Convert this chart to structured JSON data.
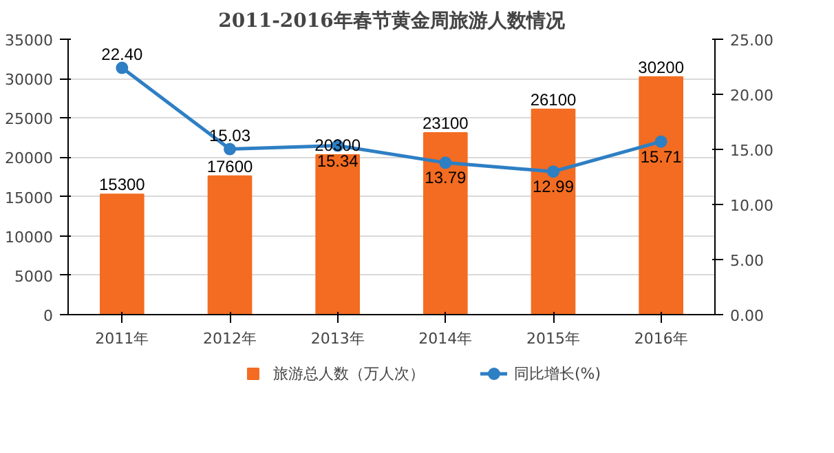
{
  "chart_data": {
    "type": "bar",
    "title": "2011-2016年春节黄金周旅游人数情况",
    "categories": [
      "2011年",
      "2012年",
      "2013年",
      "2014年",
      "2015年",
      "2016年"
    ],
    "series": [
      {
        "name": "旅游总人数（万人次）",
        "color": "#f36c21",
        "values": [
          15300,
          17600,
          20300,
          23100,
          26100,
          30200
        ],
        "value_labels": [
          "15300",
          "17600",
          "20300",
          "23100",
          "26100",
          "30200"
        ]
      },
      {
        "name": "同比增长(%)",
        "type": "line",
        "axis": "y2",
        "color": "#2e7fc4",
        "values": [
          22.4,
          15.03,
          15.34,
          13.79,
          12.99,
          15.71
        ],
        "value_labels": [
          "22.40",
          "15.03",
          "15.34",
          "13.79",
          "12.99",
          "15.71"
        ]
      }
    ],
    "ylim": [
      0,
      35000
    ],
    "yticks": [
      0,
      5000,
      10000,
      15000,
      20000,
      25000,
      30000,
      35000
    ],
    "y2lim": [
      0,
      25
    ],
    "y2ticks": [
      {
        "value": 0,
        "label": "0.00"
      },
      {
        "value": 5,
        "label": "5.00"
      },
      {
        "value": 10,
        "label": "10.00"
      },
      {
        "value": 15,
        "label": "15.00"
      },
      {
        "value": 20,
        "label": "20.00"
      },
      {
        "value": 25,
        "label": "25.00"
      }
    ],
    "grid": "y",
    "legend": "bottom",
    "marker": "circle",
    "line_style": "solid"
  }
}
